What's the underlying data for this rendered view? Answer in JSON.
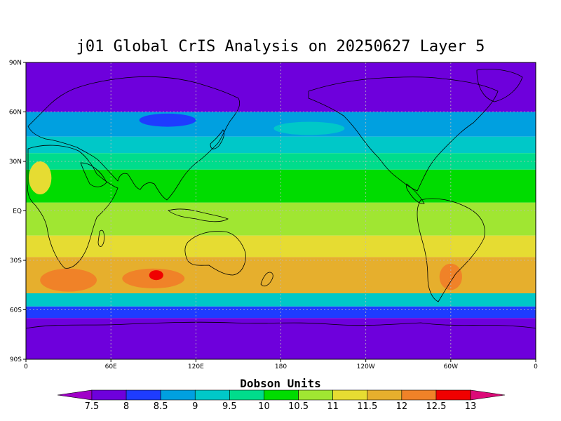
{
  "title": "j01 Global CrIS Analysis on 20250627 Layer 5",
  "colorbar": {
    "title": "Dobson Units",
    "labels": [
      "7.5",
      "8",
      "8.5",
      "9",
      "9.5",
      "10",
      "10.5",
      "11",
      "11.5",
      "12",
      "12.5",
      "13"
    ],
    "colors": [
      "#a000c8",
      "#6e00dc",
      "#1e3cff",
      "#00a0e0",
      "#00c8c8",
      "#00dc8c",
      "#00dc00",
      "#a0e632",
      "#e6dc32",
      "#e6af2d",
      "#f08228",
      "#f00000",
      "#dc0a78"
    ]
  },
  "axes": {
    "lat_labels": [
      "90N",
      "60N",
      "30N",
      "EQ",
      "30S",
      "60S",
      "90S"
    ],
    "lon_labels": [
      "0",
      "60E",
      "120E",
      "180",
      "120W",
      "60W",
      "0"
    ]
  },
  "map_data": {
    "field": "ozone layer 5",
    "units": "Dobson Units",
    "lat_range": [
      -90,
      90
    ],
    "lon_range": [
      0,
      360
    ],
    "grid": "dotted",
    "bands": [
      {
        "lat_from": 90,
        "lat_to": 60,
        "value": 7.5
      },
      {
        "lat_from": 60,
        "lat_to": 45,
        "value": 8.5
      },
      {
        "lat_from": 45,
        "lat_to": 35,
        "value": 9.0
      },
      {
        "lat_from": 35,
        "lat_to": 25,
        "value": 9.5
      },
      {
        "lat_from": 25,
        "lat_to": 5,
        "value": 10.0
      },
      {
        "lat_from": 5,
        "lat_to": -15,
        "value": 10.5
      },
      {
        "lat_from": -15,
        "lat_to": -28,
        "value": 11.0
      },
      {
        "lat_from": -28,
        "lat_to": -50,
        "value": 11.5
      },
      {
        "lat_from": -50,
        "lat_to": -58,
        "value": 9.0
      },
      {
        "lat_from": -58,
        "lat_to": -65,
        "value": 8.0
      },
      {
        "lat_from": -65,
        "lat_to": -90,
        "value": 7.5
      }
    ],
    "blobs": [
      {
        "lon": 30,
        "lat": -42,
        "rx": 20,
        "ry": 7,
        "value": 12.0
      },
      {
        "lon": 90,
        "lat": -41,
        "rx": 22,
        "ry": 6,
        "value": 12.0
      },
      {
        "lon": 92,
        "lat": -39,
        "rx": 5,
        "ry": 3,
        "value": 12.5
      },
      {
        "lon": 300,
        "lat": -40,
        "rx": 8,
        "ry": 8,
        "value": 12.0
      },
      {
        "lon": 240,
        "lat": -42,
        "rx": 6,
        "ry": 5,
        "value": 11.5
      },
      {
        "lon": 10,
        "lat": 20,
        "rx": 8,
        "ry": 10,
        "value": 11.0
      },
      {
        "lon": 200,
        "lat": 50,
        "rx": 25,
        "ry": 4,
        "value": 9.0
      },
      {
        "lon": 100,
        "lat": 55,
        "rx": 20,
        "ry": 4,
        "value": 8.0
      }
    ]
  }
}
